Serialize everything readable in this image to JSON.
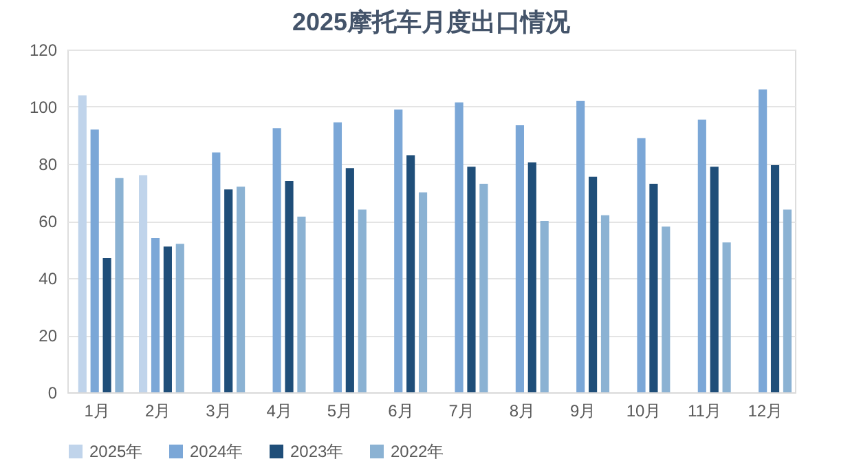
{
  "chart_data": {
    "type": "bar",
    "title": "2025摩托车月度出口情况",
    "categories": [
      "1月",
      "2月",
      "3月",
      "4月",
      "5月",
      "6月",
      "7月",
      "8月",
      "9月",
      "10月",
      "11月",
      "12月"
    ],
    "series": [
      {
        "name": "2025年",
        "color": "#c0d4eb",
        "values": [
          104,
          76,
          null,
          null,
          null,
          null,
          null,
          null,
          null,
          null,
          null,
          null
        ]
      },
      {
        "name": "2024年",
        "color": "#7ba7d7",
        "values": [
          92,
          54,
          84,
          92.5,
          94.5,
          99,
          101.5,
          93.5,
          102,
          89,
          95.5,
          106
        ]
      },
      {
        "name": "2023年",
        "color": "#1f4e79",
        "values": [
          47,
          51,
          71,
          74,
          78.5,
          83,
          79,
          80.5,
          75.5,
          73,
          79,
          79.5
        ]
      },
      {
        "name": "2022年",
        "color": "#8bb2d3",
        "values": [
          75,
          52,
          72,
          61.5,
          64,
          70,
          73,
          60,
          62,
          58,
          52.5,
          64
        ]
      }
    ],
    "ylim": [
      0,
      120
    ],
    "yticks": [
      0,
      20,
      40,
      60,
      80,
      100,
      120
    ],
    "grid": "y",
    "legend": "bottom"
  }
}
